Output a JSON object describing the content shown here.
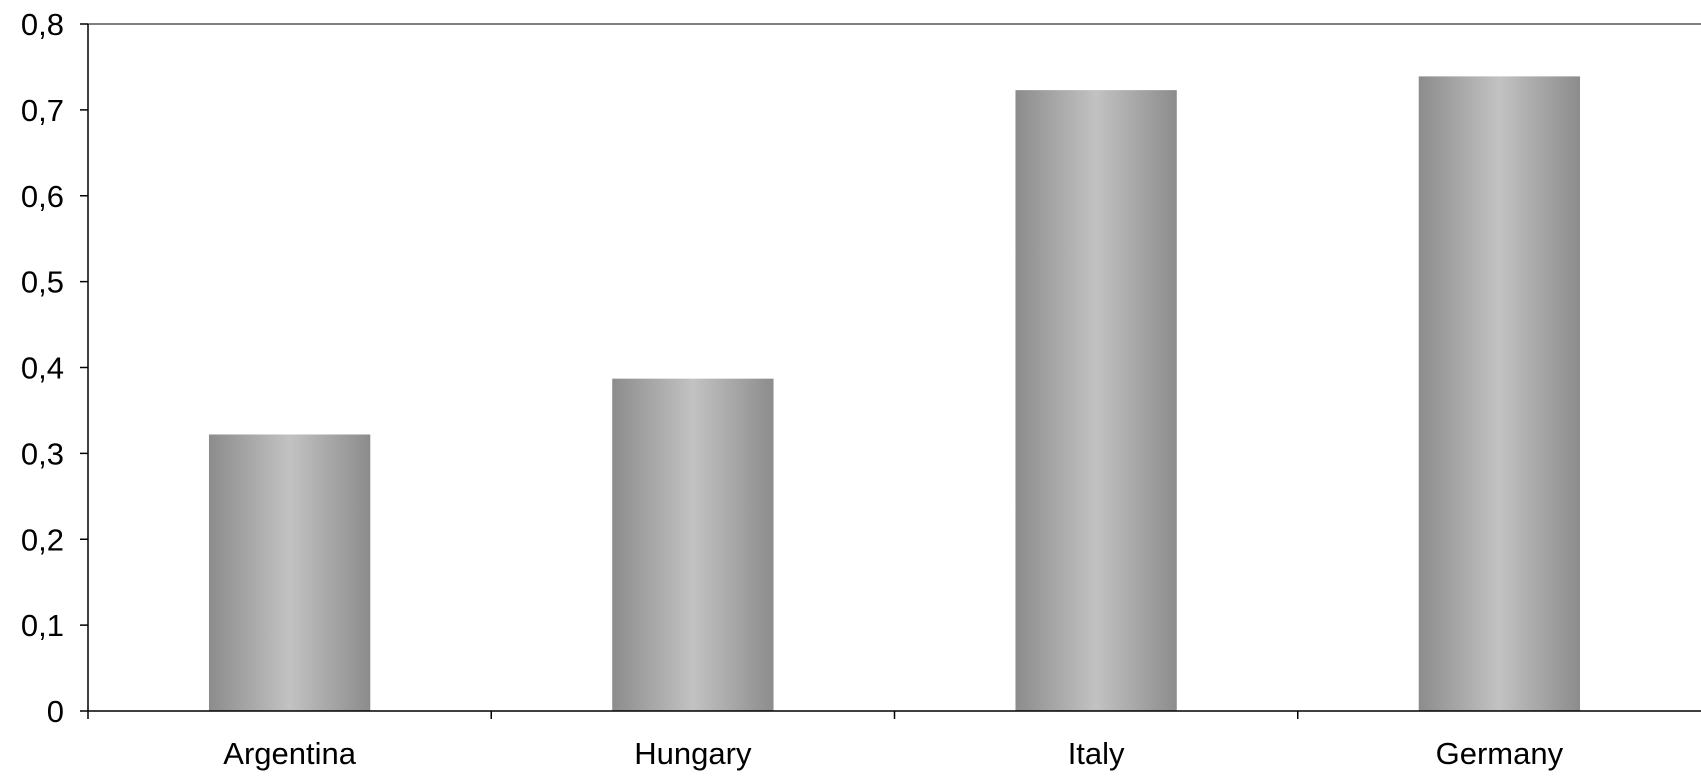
{
  "chart_data": {
    "type": "bar",
    "title": "",
    "xlabel": "",
    "ylabel": "",
    "categories": [
      "Argentina",
      "Hungary",
      "Italy",
      "Germany"
    ],
    "values": [
      0.322,
      0.387,
      0.723,
      0.739
    ],
    "ylim": [
      0,
      0.8
    ],
    "yticks": [
      0,
      0.1,
      0.2,
      0.3,
      0.4,
      0.5,
      0.6,
      0.7,
      0.8
    ],
    "ytick_labels": [
      "0",
      "0,1",
      "0,2",
      "0,3",
      "0,4",
      "0,5",
      "0,6",
      "0,7",
      "0,8"
    ],
    "grid": false,
    "legend": "none",
    "colors": {
      "bar_edge": "#8c8c8c",
      "bar_center": "#c2c2c2",
      "axis": "#000000"
    }
  }
}
